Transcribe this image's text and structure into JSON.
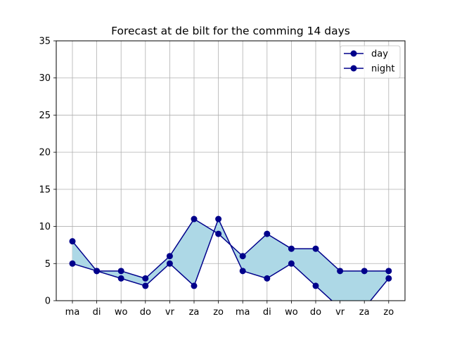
{
  "chart_data": {
    "type": "line",
    "title": "Forecast at de bilt for the comming 14 days",
    "xlabel": "",
    "ylabel": "",
    "categories": [
      "ma",
      "di",
      "wo",
      "do",
      "vr",
      "za",
      "zo",
      "ma",
      "di",
      "wo",
      "do",
      "vr",
      "za",
      "zo"
    ],
    "series": [
      {
        "name": "day",
        "values": [
          8,
          4,
          4,
          3,
          6,
          11,
          9,
          6,
          9,
          7,
          7,
          4,
          4,
          4
        ]
      },
      {
        "name": "night",
        "values": [
          5,
          4,
          3,
          2,
          5,
          2,
          11,
          4,
          3,
          5,
          2,
          -1,
          -1,
          3
        ]
      }
    ],
    "ylim": [
      0,
      35
    ],
    "yticks": [
      0,
      5,
      10,
      15,
      20,
      25,
      30,
      35
    ],
    "grid": true,
    "legend_position": "top-right",
    "fill_between": true,
    "colors": {
      "line": "#00008b",
      "fill": "#add8e6",
      "grid": "#b0b0b0",
      "axes": "#000000"
    }
  }
}
